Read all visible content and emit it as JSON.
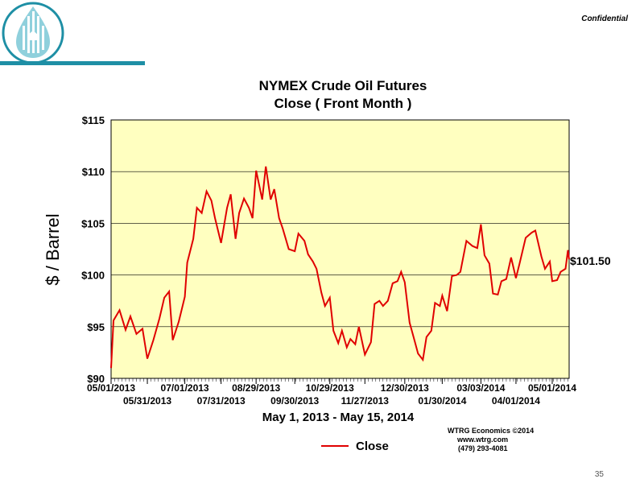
{
  "header": {
    "confidential_label": "Confidential",
    "page_number": "35",
    "logo_icon": "water-drop-logo-icon",
    "accent_color": "#1e8fa5"
  },
  "chart_data": {
    "type": "line",
    "title_line1": "NYMEX Crude Oil Futures",
    "title_line2": "Close ( Front Month )",
    "ylabel": "$ / Barrel",
    "xlabel": "May 1, 2013 - May 15, 2014",
    "ylim": [
      90,
      115
    ],
    "yticks": [
      {
        "value": 90,
        "label": "$90"
      },
      {
        "value": 95,
        "label": "$95"
      },
      {
        "value": 100,
        "label": "$100"
      },
      {
        "value": 105,
        "label": "$105"
      },
      {
        "value": 110,
        "label": "$110"
      },
      {
        "value": 115,
        "label": "$115"
      }
    ],
    "x_start": "2013-05-01",
    "x_end": "2014-05-15",
    "xticks_upper": [
      "05/01/2013",
      "07/01/2013",
      "08/29/2013",
      "10/29/2013",
      "12/30/2013",
      "03/03/2014",
      "05/01/2014"
    ],
    "xticks_lower": [
      "05/31/2013",
      "07/31/2013",
      "09/30/2013",
      "11/27/2013",
      "01/30/2014",
      "04/01/2014"
    ],
    "grid": "horizontal",
    "background_color": "#ffffc0",
    "line_color": "#e00000",
    "last_value_label": "$101.50",
    "series": [
      {
        "name": "Close",
        "points": [
          [
            "2013-05-01",
            91.0
          ],
          [
            "2013-05-03",
            95.6
          ],
          [
            "2013-05-08",
            96.6
          ],
          [
            "2013-05-13",
            94.7
          ],
          [
            "2013-05-17",
            96.0
          ],
          [
            "2013-05-22",
            94.3
          ],
          [
            "2013-05-27",
            94.8
          ],
          [
            "2013-05-31",
            91.9
          ],
          [
            "2013-06-05",
            93.7
          ],
          [
            "2013-06-10",
            95.8
          ],
          [
            "2013-06-14",
            97.8
          ],
          [
            "2013-06-18",
            98.4
          ],
          [
            "2013-06-21",
            93.7
          ],
          [
            "2013-06-26",
            95.5
          ],
          [
            "2013-07-01",
            97.9
          ],
          [
            "2013-07-03",
            101.2
          ],
          [
            "2013-07-08",
            103.5
          ],
          [
            "2013-07-11",
            106.5
          ],
          [
            "2013-07-15",
            106.0
          ],
          [
            "2013-07-19",
            108.1
          ],
          [
            "2013-07-23",
            107.2
          ],
          [
            "2013-07-26",
            105.5
          ],
          [
            "2013-07-31",
            103.1
          ],
          [
            "2013-08-05",
            106.5
          ],
          [
            "2013-08-08",
            107.8
          ],
          [
            "2013-08-12",
            103.5
          ],
          [
            "2013-08-15",
            106.0
          ],
          [
            "2013-08-19",
            107.4
          ],
          [
            "2013-08-23",
            106.5
          ],
          [
            "2013-08-26",
            105.5
          ],
          [
            "2013-08-29",
            110.1
          ],
          [
            "2013-09-03",
            107.3
          ],
          [
            "2013-09-06",
            110.5
          ],
          [
            "2013-09-10",
            107.3
          ],
          [
            "2013-09-13",
            108.3
          ],
          [
            "2013-09-17",
            105.5
          ],
          [
            "2013-09-20",
            104.5
          ],
          [
            "2013-09-25",
            102.5
          ],
          [
            "2013-09-30",
            102.3
          ],
          [
            "2013-10-03",
            104.0
          ],
          [
            "2013-10-08",
            103.3
          ],
          [
            "2013-10-11",
            102.0
          ],
          [
            "2013-10-15",
            101.3
          ],
          [
            "2013-10-18",
            100.6
          ],
          [
            "2013-10-22",
            98.3
          ],
          [
            "2013-10-25",
            97.0
          ],
          [
            "2013-10-29",
            97.8
          ],
          [
            "2013-11-01",
            94.6
          ],
          [
            "2013-11-05",
            93.4
          ],
          [
            "2013-11-08",
            94.6
          ],
          [
            "2013-11-12",
            93.0
          ],
          [
            "2013-11-15",
            93.8
          ],
          [
            "2013-11-19",
            93.3
          ],
          [
            "2013-11-22",
            95.0
          ],
          [
            "2013-11-27",
            92.3
          ],
          [
            "2013-12-02",
            93.5
          ],
          [
            "2013-12-05",
            97.2
          ],
          [
            "2013-12-09",
            97.5
          ],
          [
            "2013-12-12",
            97.0
          ],
          [
            "2013-12-16",
            97.5
          ],
          [
            "2013-12-20",
            99.2
          ],
          [
            "2013-12-24",
            99.4
          ],
          [
            "2013-12-27",
            100.3
          ],
          [
            "2013-12-30",
            99.3
          ],
          [
            "2014-01-03",
            95.4
          ],
          [
            "2014-01-07",
            93.7
          ],
          [
            "2014-01-10",
            92.4
          ],
          [
            "2014-01-14",
            91.8
          ],
          [
            "2014-01-17",
            94.0
          ],
          [
            "2014-01-21",
            94.6
          ],
          [
            "2014-01-24",
            97.3
          ],
          [
            "2014-01-28",
            97.0
          ],
          [
            "2014-01-30",
            98.0
          ],
          [
            "2014-02-03",
            96.5
          ],
          [
            "2014-02-07",
            99.9
          ],
          [
            "2014-02-11",
            100.0
          ],
          [
            "2014-02-14",
            100.3
          ],
          [
            "2014-02-19",
            103.3
          ],
          [
            "2014-02-24",
            102.8
          ],
          [
            "2014-02-28",
            102.6
          ],
          [
            "2014-03-03",
            104.9
          ],
          [
            "2014-03-06",
            101.9
          ],
          [
            "2014-03-10",
            101.1
          ],
          [
            "2014-03-13",
            98.2
          ],
          [
            "2014-03-17",
            98.1
          ],
          [
            "2014-03-20",
            99.4
          ],
          [
            "2014-03-24",
            99.6
          ],
          [
            "2014-03-28",
            101.7
          ],
          [
            "2014-04-01",
            99.7
          ],
          [
            "2014-04-04",
            101.1
          ],
          [
            "2014-04-09",
            103.6
          ],
          [
            "2014-04-14",
            104.1
          ],
          [
            "2014-04-17",
            104.3
          ],
          [
            "2014-04-22",
            101.8
          ],
          [
            "2014-04-25",
            100.6
          ],
          [
            "2014-04-29",
            101.3
          ],
          [
            "2014-05-01",
            99.4
          ],
          [
            "2014-05-05",
            99.5
          ],
          [
            "2014-05-08",
            100.3
          ],
          [
            "2014-05-12",
            100.6
          ],
          [
            "2014-05-14",
            102.4
          ],
          [
            "2014-05-15",
            101.5
          ]
        ]
      }
    ],
    "legend_position": "bottom-center",
    "credit_lines": [
      "WTRG Economics  ©2014",
      "www.wtrg.com",
      "(479) 293-4081"
    ]
  }
}
